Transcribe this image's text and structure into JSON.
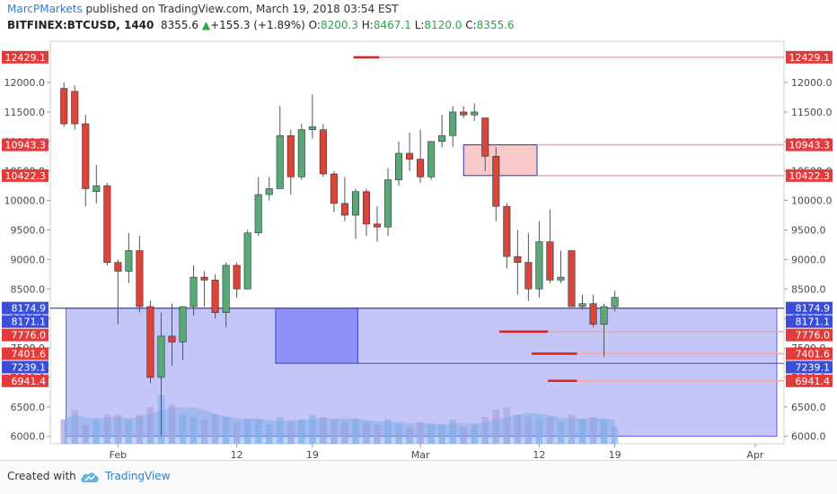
{
  "header": {
    "author": "MarcPMarkets",
    "published_text": "published on TradingView.com, March 19, 2018 03:54 EST",
    "symbol": "BITFINEX:BTCUSD, 1440",
    "last": "8355.6",
    "change_arrow": "▲",
    "change": "+155.3 (+1.89%)",
    "o_label": "O:",
    "o_value": "8200.3",
    "h_label": "H:",
    "h_value": "8467.1",
    "l_label": "L:",
    "l_value": "8120.0",
    "c_label": "C:",
    "c_value": "8355.6"
  },
  "footer": {
    "created_with": "Created with",
    "brand": "TradingView",
    "brand_icon": "tradingview-cloud-icon"
  },
  "chart_data": {
    "type": "candlestick",
    "ylim": [
      5950,
      12700
    ],
    "y_ticks": [
      6000,
      6500,
      7000,
      7500,
      8000,
      8500,
      9000,
      9500,
      10000,
      10500,
      11000,
      11500,
      12000
    ],
    "x_ticks": [
      {
        "label": "Feb",
        "index": 5
      },
      {
        "label": "12",
        "index": 16
      },
      {
        "label": "19",
        "index": 23
      },
      {
        "label": "Mar",
        "index": 33
      },
      {
        "label": "12",
        "index": 44
      },
      {
        "label": "19",
        "index": 51
      },
      {
        "label": "Apr",
        "index": 64
      }
    ],
    "x_range": [
      -0.6,
      66
    ],
    "candles": [
      {
        "o": 11900,
        "h": 12000,
        "l": 11250,
        "c": 11300
      },
      {
        "o": 11850,
        "h": 11950,
        "l": 11200,
        "c": 11300
      },
      {
        "o": 11300,
        "h": 11450,
        "l": 9900,
        "c": 10200
      },
      {
        "o": 10150,
        "h": 10600,
        "l": 9950,
        "c": 10250
      },
      {
        "o": 10250,
        "h": 10300,
        "l": 8900,
        "c": 8950
      },
      {
        "o": 8950,
        "h": 9000,
        "l": 7900,
        "c": 8800
      },
      {
        "o": 8800,
        "h": 9450,
        "l": 8600,
        "c": 9150
      },
      {
        "o": 9150,
        "h": 9400,
        "l": 8100,
        "c": 8200
      },
      {
        "o": 8200,
        "h": 8300,
        "l": 6900,
        "c": 7000
      },
      {
        "o": 7000,
        "h": 8100,
        "l": 6000,
        "c": 7700
      },
      {
        "o": 7700,
        "h": 8250,
        "l": 7200,
        "c": 7600
      },
      {
        "o": 7600,
        "h": 8200,
        "l": 7300,
        "c": 8200
      },
      {
        "o": 8200,
        "h": 8900,
        "l": 8050,
        "c": 8700
      },
      {
        "o": 8700,
        "h": 8800,
        "l": 8200,
        "c": 8650
      },
      {
        "o": 8650,
        "h": 8750,
        "l": 8000,
        "c": 8100
      },
      {
        "o": 8100,
        "h": 8950,
        "l": 7850,
        "c": 8900
      },
      {
        "o": 8900,
        "h": 8950,
        "l": 8350,
        "c": 8500
      },
      {
        "o": 8500,
        "h": 9500,
        "l": 8500,
        "c": 9450
      },
      {
        "o": 9450,
        "h": 10400,
        "l": 9400,
        "c": 10100
      },
      {
        "o": 10100,
        "h": 10400,
        "l": 10000,
        "c": 10200
      },
      {
        "o": 10200,
        "h": 11600,
        "l": 10200,
        "c": 11100
      },
      {
        "o": 11100,
        "h": 11200,
        "l": 10100,
        "c": 10400
      },
      {
        "o": 10400,
        "h": 11300,
        "l": 10350,
        "c": 11200
      },
      {
        "o": 11200,
        "h": 11800,
        "l": 11050,
        "c": 11250
      },
      {
        "o": 11200,
        "h": 11300,
        "l": 10400,
        "c": 10450
      },
      {
        "o": 10450,
        "h": 10500,
        "l": 9800,
        "c": 9950
      },
      {
        "o": 9950,
        "h": 10400,
        "l": 9650,
        "c": 9750
      },
      {
        "o": 9750,
        "h": 10200,
        "l": 9350,
        "c": 10150
      },
      {
        "o": 10150,
        "h": 10200,
        "l": 9400,
        "c": 9600
      },
      {
        "o": 9600,
        "h": 9900,
        "l": 9300,
        "c": 9550
      },
      {
        "o": 9550,
        "h": 10550,
        "l": 9400,
        "c": 10350
      },
      {
        "o": 10350,
        "h": 11000,
        "l": 10250,
        "c": 10800
      },
      {
        "o": 10800,
        "h": 11150,
        "l": 10500,
        "c": 10700
      },
      {
        "o": 10700,
        "h": 11200,
        "l": 10300,
        "c": 10400
      },
      {
        "o": 10400,
        "h": 11000,
        "l": 10350,
        "c": 11000
      },
      {
        "o": 11000,
        "h": 11450,
        "l": 10900,
        "c": 11100
      },
      {
        "o": 11100,
        "h": 11600,
        "l": 10900,
        "c": 11500
      },
      {
        "o": 11500,
        "h": 11600,
        "l": 11400,
        "c": 11450
      },
      {
        "o": 11450,
        "h": 11650,
        "l": 11350,
        "c": 11500
      },
      {
        "o": 11400,
        "h": 11400,
        "l": 10500,
        "c": 10750
      },
      {
        "o": 10750,
        "h": 10900,
        "l": 9650,
        "c": 9900
      },
      {
        "o": 9900,
        "h": 9950,
        "l": 8850,
        "c": 9050
      },
      {
        "o": 9050,
        "h": 9500,
        "l": 8400,
        "c": 8950
      },
      {
        "o": 8950,
        "h": 9450,
        "l": 8300,
        "c": 8500
      },
      {
        "o": 8500,
        "h": 9650,
        "l": 8350,
        "c": 9300
      },
      {
        "o": 9300,
        "h": 9850,
        "l": 8600,
        "c": 8650
      },
      {
        "o": 8650,
        "h": 9150,
        "l": 8600,
        "c": 8700
      },
      {
        "o": 9150,
        "h": 9150,
        "l": 8250,
        "c": 8200
      },
      {
        "o": 8200,
        "h": 8400,
        "l": 8150,
        "c": 8250
      },
      {
        "o": 8250,
        "h": 8400,
        "l": 7850,
        "c": 7900
      },
      {
        "o": 7900,
        "h": 8250,
        "l": 7350,
        "c": 8200
      },
      {
        "o": 8200,
        "h": 8467,
        "l": 8120,
        "c": 8356
      }
    ],
    "volume": [
      0.5,
      0.7,
      0.4,
      0.5,
      0.6,
      0.6,
      0.5,
      0.6,
      0.75,
      1.0,
      0.8,
      0.6,
      0.55,
      0.5,
      0.6,
      0.55,
      0.45,
      0.5,
      0.5,
      0.4,
      0.55,
      0.45,
      0.5,
      0.6,
      0.55,
      0.5,
      0.45,
      0.5,
      0.45,
      0.4,
      0.5,
      0.4,
      0.35,
      0.45,
      0.4,
      0.4,
      0.5,
      0.35,
      0.4,
      0.55,
      0.7,
      0.75,
      0.6,
      0.55,
      0.5,
      0.55,
      0.45,
      0.6,
      0.5,
      0.55,
      0.5,
      0.35
    ],
    "volume_max": 6700,
    "zones": [
      {
        "top": 8174.9,
        "bottom": 6000,
        "x_from": 0.2,
        "x_to": 66,
        "fill": "#b9bcf6"
      },
      {
        "top": 8174.9,
        "bottom": 7239.1,
        "x_from": 19.6,
        "x_to": 27.2,
        "fill": "#8b8ef5"
      },
      {
        "top": 10943.3,
        "bottom": 10422.3,
        "x_from": 37.0,
        "x_to": 43.8,
        "fill": "#f7c6c6"
      }
    ],
    "levels": [
      {
        "value": 12429.1,
        "label": "12429.1",
        "seg_from": 26.8,
        "seg_to": 29.2,
        "kind": "red"
      },
      {
        "value": 10943.3,
        "label": "10943.3",
        "seg_from": 43.8,
        "seg_to": 43.8,
        "kind": "red"
      },
      {
        "value": 10422.3,
        "label": "10422.3",
        "seg_from": 43.8,
        "seg_to": 43.8,
        "kind": "red"
      },
      {
        "value": 8174.9,
        "label": "8174.9",
        "seg_from": 0,
        "seg_to": 0,
        "kind": "blue"
      },
      {
        "value": 8171.1,
        "label": "8171.1",
        "seg_from": 0,
        "seg_to": 0,
        "kind": "blue"
      },
      {
        "value": 7776.0,
        "label": "7776.0",
        "seg_from": 40.3,
        "seg_to": 44.8,
        "kind": "red"
      },
      {
        "value": 7401.6,
        "label": "7401.6",
        "seg_from": 43.3,
        "seg_to": 47.5,
        "kind": "red"
      },
      {
        "value": 7239.1,
        "label": "7239.1",
        "seg_from": 27.2,
        "seg_to": 27.2,
        "kind": "blue"
      },
      {
        "value": 6941.4,
        "label": "6941.4",
        "seg_from": 44.8,
        "seg_to": 47.5,
        "kind": "red"
      }
    ],
    "colors": {
      "up": "#5aa878",
      "down": "#d9453a",
      "volume": "#7aa6e6",
      "red_label": "#e33b3b",
      "blue_label": "#3b4fd6",
      "axis_text": "#4a4a4a"
    }
  }
}
